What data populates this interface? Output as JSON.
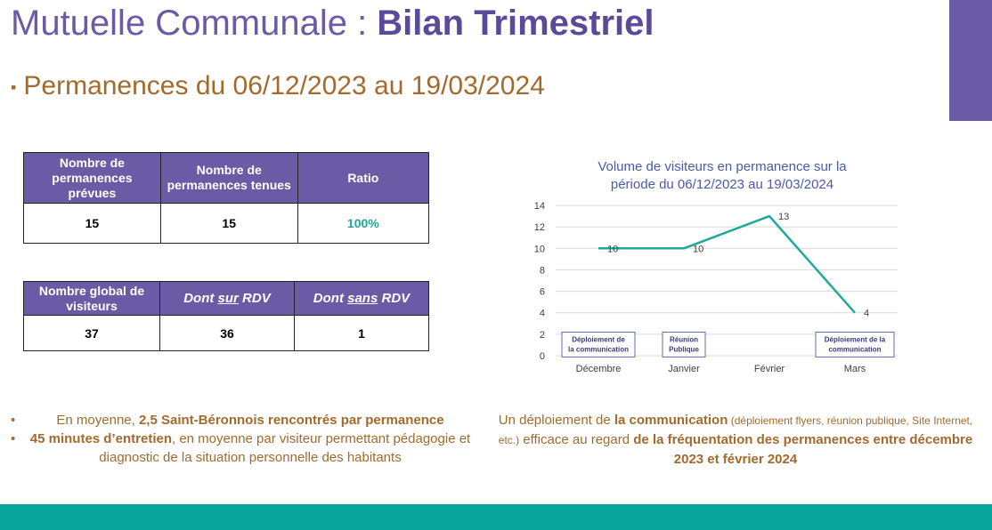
{
  "slide": {
    "title_light": "Mutuelle Communale : ",
    "title_bold": "Bilan Trimestriel",
    "subtitle_bullet": "▪",
    "subtitle": "Permanences du 06/12/2023 au 19/03/2024"
  },
  "table1": {
    "headers": [
      "Nombre de permanences prévues",
      "Nombre de permanences tenues",
      "Ratio"
    ],
    "values": [
      "15",
      "15",
      "100%"
    ]
  },
  "table2": {
    "headers": [
      "Nombre global de visiteurs",
      "Dont ",
      "sur",
      " RDV",
      "Dont ",
      "sans",
      " RDV"
    ],
    "values": [
      "37",
      "36",
      "1"
    ]
  },
  "chart_data": {
    "type": "line",
    "title_line1": "Volume de visiteurs en permanence sur la",
    "title_line2": "période du 06/12/2023 au 19/03/2024",
    "categories": [
      "Décembre",
      "Janvier",
      "Février",
      "Mars"
    ],
    "series": [
      {
        "values": [
          10,
          10,
          13,
          4
        ],
        "color": "#1fa89c"
      }
    ],
    "ylim": [
      0,
      14
    ],
    "yticks": [
      "0",
      "2",
      "4",
      "6",
      "8",
      "10",
      "12",
      "14"
    ],
    "grid": true,
    "annotations": [
      {
        "category": "Décembre",
        "line1": "Déploiement de",
        "line2": "la communication"
      },
      {
        "category": "Janvier",
        "line1": "Réunion",
        "line2": "Publique"
      },
      {
        "category": "Mars",
        "line1": "Déploiement de la",
        "line2": "communication"
      }
    ]
  },
  "bottom_left": {
    "bullet": "•",
    "item1_prefix": "En moyenne, ",
    "item1_bold": "2,5 Saint-Béronnois rencontrés par permanence",
    "item2_bold": "45 minutes d’entretien",
    "item2_rest": ", en moyenne par visiteur permettant pédagogie et diagnostic de la situation personnelle des habitants"
  },
  "bottom_right": {
    "p1": "Un déploiement de ",
    "b1": "la communication",
    "small": " (déploiement flyers, réunion publique, Site Internet, etc.)",
    "p2": " efficace au regard ",
    "b2": "de la fréquentation des permanences entre décembre 2023 et février 2024"
  },
  "colors": {
    "purple": "#6b5ba6",
    "orange": "#a36a2c",
    "teal": "#08a69a",
    "chart_line": "#1fa89c"
  }
}
